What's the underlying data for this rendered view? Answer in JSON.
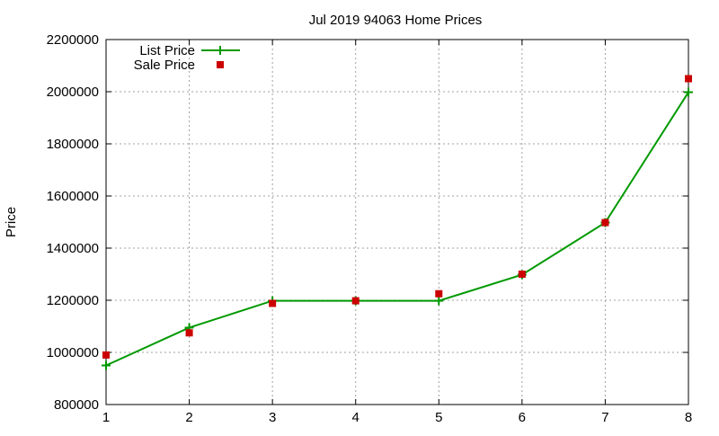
{
  "chart_data": {
    "type": "line",
    "title": "Jul 2019 94063 Home Prices",
    "xlabel": "",
    "ylabel": "Price",
    "x": [
      1,
      2,
      3,
      4,
      5,
      6,
      7,
      8
    ],
    "xlim": [
      1,
      8
    ],
    "ylim": [
      800000,
      2200000
    ],
    "xticks": [
      1,
      2,
      3,
      4,
      5,
      6,
      7,
      8
    ],
    "yticks": [
      800000,
      1000000,
      1200000,
      1400000,
      1600000,
      1800000,
      2000000,
      2200000
    ],
    "grid": true,
    "legend_position": "top-left",
    "series": [
      {
        "name": "List Price",
        "style": "line-with-plus-markers",
        "color": "#009900",
        "values": [
          950000,
          1095000,
          1198000,
          1198000,
          1198000,
          1298000,
          1498000,
          1998000
        ]
      },
      {
        "name": "Sale Price",
        "style": "square-markers",
        "color": "#cc0000",
        "values": [
          990000,
          1075000,
          1188000,
          1198000,
          1225000,
          1300000,
          1498000,
          2050000
        ]
      }
    ]
  }
}
